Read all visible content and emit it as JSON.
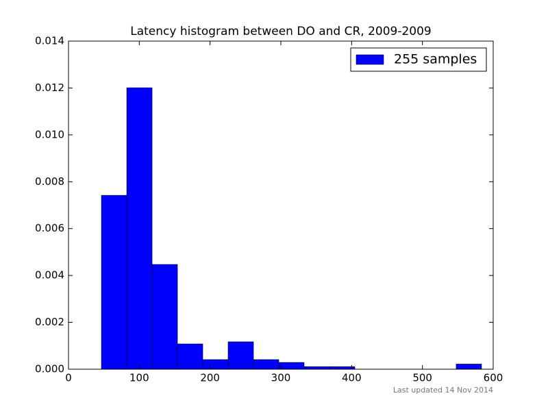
{
  "chart_data": {
    "type": "histogram",
    "title": "Latency histogram between DO and CR, 2009-2009",
    "bins": [
      46.5,
      82.3,
      118.1,
      153.9,
      189.7,
      225.5,
      261.3,
      297.1,
      332.9,
      368.7,
      404.5,
      440.3,
      476.1,
      511.9,
      547.7,
      583.5
    ],
    "series": [
      {
        "name": "255 samples",
        "color": "#0000ff",
        "values": [
          0.00742,
          0.01201,
          0.00447,
          0.00108,
          0.00041,
          0.00117,
          0.00041,
          0.00029,
          0.00011,
          0.00011,
          0,
          0,
          0,
          0,
          0.00022
        ]
      }
    ],
    "xlim": [
      0,
      600
    ],
    "xticks": [
      0,
      100,
      200,
      300,
      400,
      500,
      600
    ],
    "ylim": [
      0,
      0.014
    ],
    "yticks": [
      {
        "value": 0,
        "label": "0.000"
      },
      {
        "value": 0.002,
        "label": "0.002"
      },
      {
        "value": 0.004,
        "label": "0.004"
      },
      {
        "value": 0.006,
        "label": "0.006"
      },
      {
        "value": 0.008,
        "label": "0.008"
      },
      {
        "value": 0.01,
        "label": "0.010"
      },
      {
        "value": 0.012,
        "label": "0.012"
      },
      {
        "value": 0.014,
        "label": "0.014"
      }
    ],
    "legend": "upper right",
    "footer": "Last updated 14 Nov 2014"
  }
}
